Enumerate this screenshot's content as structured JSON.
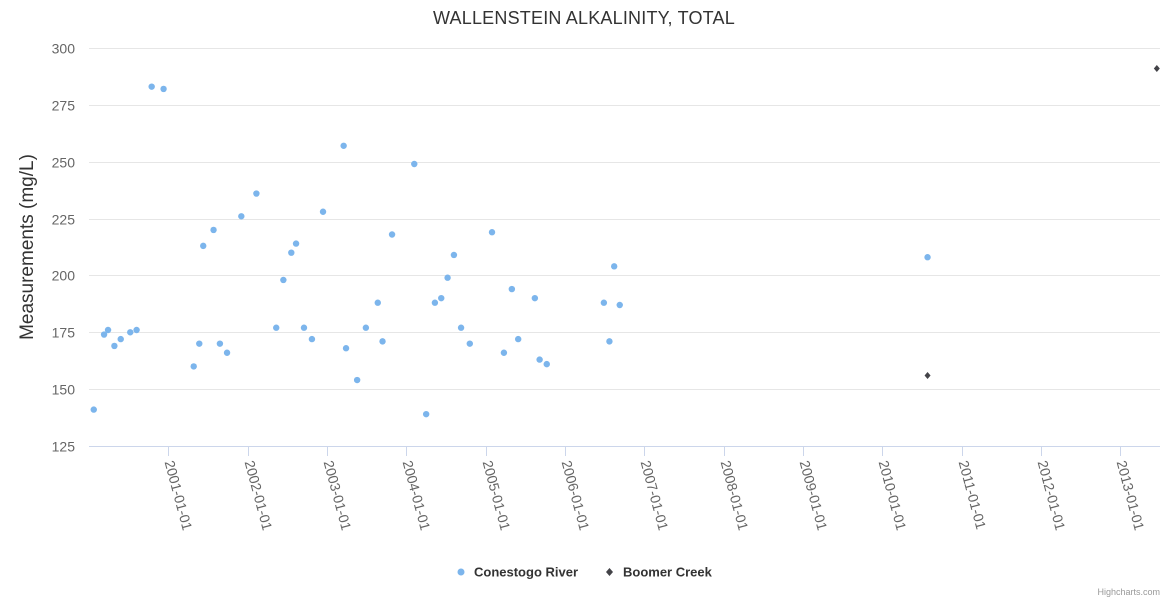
{
  "chart_data": {
    "type": "scatter",
    "title": "WALLENSTEIN ALKALINITY, TOTAL",
    "xlabel": "",
    "ylabel": "Measurements (mg/L)",
    "ylim": [
      125,
      300
    ],
    "yticks": [
      125,
      150,
      175,
      200,
      225,
      250,
      275,
      300
    ],
    "xlim": [
      2000.0,
      2013.5
    ],
    "xticks": [
      {
        "year": 2001,
        "label": "2001-01-01"
      },
      {
        "year": 2002,
        "label": "2002-01-01"
      },
      {
        "year": 2003,
        "label": "2003-01-01"
      },
      {
        "year": 2004,
        "label": "2004-01-01"
      },
      {
        "year": 2005,
        "label": "2005-01-01"
      },
      {
        "year": 2006,
        "label": "2006-01-01"
      },
      {
        "year": 2007,
        "label": "2007-01-01"
      },
      {
        "year": 2008,
        "label": "2008-01-01"
      },
      {
        "year": 2009,
        "label": "2009-01-01"
      },
      {
        "year": 2010,
        "label": "2010-01-01"
      },
      {
        "year": 2011,
        "label": "2011-01-01"
      },
      {
        "year": 2012,
        "label": "2012-01-01"
      },
      {
        "year": 2013,
        "label": "2013-01-01"
      }
    ],
    "grid": true,
    "legend_position": "bottom-center",
    "series": [
      {
        "name": "Conestogo River",
        "color": "#7cb5ec",
        "marker": "circle",
        "points": [
          [
            2000.06,
            141
          ],
          [
            2000.19,
            174
          ],
          [
            2000.24,
            176
          ],
          [
            2000.32,
            169
          ],
          [
            2000.4,
            172
          ],
          [
            2000.52,
            175
          ],
          [
            2000.6,
            176
          ],
          [
            2000.79,
            283
          ],
          [
            2000.94,
            282
          ],
          [
            2001.32,
            160
          ],
          [
            2001.39,
            170
          ],
          [
            2001.44,
            213
          ],
          [
            2001.57,
            220
          ],
          [
            2001.65,
            170
          ],
          [
            2001.74,
            166
          ],
          [
            2001.92,
            226
          ],
          [
            2002.11,
            236
          ],
          [
            2002.36,
            177
          ],
          [
            2002.45,
            198
          ],
          [
            2002.55,
            210
          ],
          [
            2002.61,
            214
          ],
          [
            2002.71,
            177
          ],
          [
            2002.81,
            172
          ],
          [
            2002.95,
            228
          ],
          [
            2003.21,
            257
          ],
          [
            2003.24,
            168
          ],
          [
            2003.38,
            154
          ],
          [
            2003.49,
            177
          ],
          [
            2003.64,
            188
          ],
          [
            2003.7,
            171
          ],
          [
            2003.82,
            218
          ],
          [
            2004.1,
            249
          ],
          [
            2004.25,
            139
          ],
          [
            2004.36,
            188
          ],
          [
            2004.44,
            190
          ],
          [
            2004.52,
            199
          ],
          [
            2004.6,
            209
          ],
          [
            2004.69,
            177
          ],
          [
            2004.8,
            170
          ],
          [
            2005.08,
            219
          ],
          [
            2005.23,
            166
          ],
          [
            2005.33,
            194
          ],
          [
            2005.41,
            172
          ],
          [
            2005.62,
            190
          ],
          [
            2005.68,
            163
          ],
          [
            2005.77,
            161
          ],
          [
            2006.49,
            188
          ],
          [
            2006.56,
            171
          ],
          [
            2006.62,
            204
          ],
          [
            2006.69,
            187
          ],
          [
            2010.57,
            208
          ]
        ]
      },
      {
        "name": "Boomer Creek",
        "color": "#434348",
        "marker": "diamond",
        "points": [
          [
            2010.57,
            156
          ],
          [
            2013.46,
            291
          ]
        ]
      }
    ]
  },
  "credits": "Highcharts.com"
}
